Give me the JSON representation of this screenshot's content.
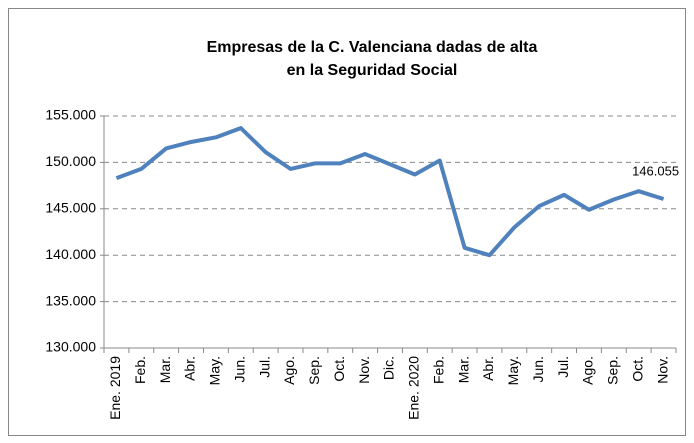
{
  "chart_data": {
    "type": "line",
    "title": [
      "Empresas de la C. Valenciana dadas de alta",
      "en la Seguridad Social"
    ],
    "categories": [
      "Ene. 2019",
      "Feb.",
      "Mar.",
      "Abr.",
      "May.",
      "Jun.",
      "Jul.",
      "Ago.",
      "Sep.",
      "Oct.",
      "Nov.",
      "Dic.",
      "Ene. 2020",
      "Feb.",
      "Mar.",
      "Abr.",
      "May.",
      "Jun.",
      "Jul.",
      "Ago.",
      "Sep.",
      "Oct.",
      "Nov."
    ],
    "series": [
      {
        "name": "Empresas",
        "color": "#4f81bd",
        "values": [
          148300,
          149300,
          151500,
          152200,
          152700,
          153700,
          151100,
          149300,
          149900,
          149900,
          150900,
          149800,
          148700,
          150200,
          140800,
          140000,
          143000,
          145300,
          146500,
          144900,
          146000,
          146900,
          146055
        ],
        "value_labels": [
          null,
          null,
          null,
          null,
          null,
          null,
          null,
          null,
          null,
          null,
          null,
          null,
          null,
          null,
          null,
          null,
          null,
          null,
          null,
          null,
          null,
          null,
          "146.055"
        ]
      }
    ],
    "ylim": [
      130000,
      155000
    ],
    "yticks": [
      {
        "value": 130000,
        "label": "130.000"
      },
      {
        "value": 135000,
        "label": "135.000"
      },
      {
        "value": 140000,
        "label": "140.000"
      },
      {
        "value": 145000,
        "label": "145.000"
      },
      {
        "value": 150000,
        "label": "150.000"
      },
      {
        "value": 155000,
        "label": "155.000"
      }
    ],
    "grid": true
  }
}
